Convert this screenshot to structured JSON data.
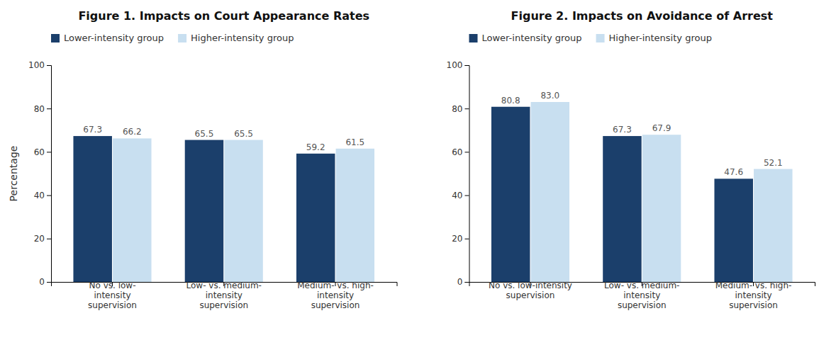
{
  "chart_data": [
    {
      "type": "bar",
      "title": "Figure 1. Impacts on Court Appearance Rates",
      "categories": [
        "No vs. low-\nintensity\nsupervision",
        "Low- vs. medium-\nintensity\nsupervision",
        "Medium- vs. high-\nintensity\nsupervision"
      ],
      "series": [
        {
          "name": "Lower-intensity group",
          "color": "#1b3f6b",
          "values": [
            67.3,
            65.5,
            59.2
          ]
        },
        {
          "name": "Higher-intensity group",
          "color": "#c8dff0",
          "values": [
            66.2,
            65.5,
            61.5
          ]
        }
      ],
      "y_label": "Percentage",
      "ylim": [
        0,
        100
      ],
      "yticks": [
        0,
        20,
        40,
        60,
        80,
        100
      ],
      "grid": false,
      "legend": "upper left",
      "data_labels": true
    },
    {
      "type": "bar",
      "title": "Figure 2. Impacts on Avoidance of Arrest",
      "categories": [
        "No vs. low-intensity\nsupervision",
        "Low- vs. medium-\nintensity\nsupervision",
        "Medium- vs. high-\nintensity\nsupervision"
      ],
      "series": [
        {
          "name": "Lower-intensity group",
          "color": "#1b3f6b",
          "values": [
            80.8,
            67.3,
            47.6
          ]
        },
        {
          "name": "Higher-intensity group",
          "color": "#c8dff0",
          "values": [
            83.0,
            67.9,
            52.1
          ],
          "value_labels": [
            "83.0",
            "67.9",
            "52.1"
          ]
        }
      ],
      "ylim": [
        0,
        100
      ],
      "yticks": [
        0,
        20,
        40,
        60,
        80,
        100
      ],
      "grid": false,
      "legend": "upper left",
      "data_labels": true
    }
  ]
}
